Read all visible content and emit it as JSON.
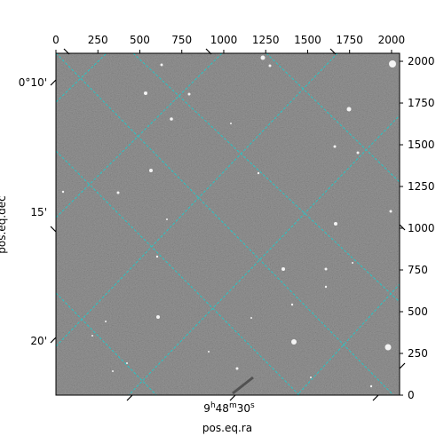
{
  "figure": {
    "xlabel": "pos.eq.ra",
    "ylabel": "pos.eq.dec",
    "pixel_axis": {
      "x_ticks": [
        "0",
        "250",
        "500",
        "750",
        "1000",
        "1250",
        "1500",
        "1750",
        "2000"
      ],
      "x_tick_values": [
        0,
        250,
        500,
        750,
        1000,
        1250,
        1500,
        1750,
        2000
      ],
      "y_ticks": [
        "0",
        "250",
        "500",
        "750",
        "1000",
        "1250",
        "1500",
        "1750",
        "2000"
      ],
      "y_tick_values": [
        0,
        250,
        500,
        750,
        1000,
        1250,
        1500,
        1750,
        2000
      ],
      "range": [
        0,
        2048
      ]
    },
    "world_axis": {
      "dec_ticks": [
        "0°10'",
        "15'",
        "20'"
      ],
      "ra_tick_base": "9",
      "ra_tick_h": "h",
      "ra_tick_min": "48",
      "ra_tick_m": "m",
      "ra_tick_sec": "30",
      "ra_tick_s": "s"
    },
    "grid_color": "#26c6c6",
    "image_style": "grayscale starfield with scattered bright stars"
  }
}
